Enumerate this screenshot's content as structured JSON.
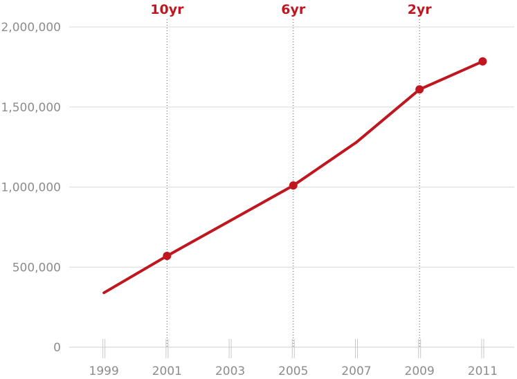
{
  "chart_data": {
    "type": "line",
    "title": "",
    "xlabel": "",
    "ylabel": "",
    "x": [
      1999,
      2001,
      2003,
      2005,
      2007,
      2009,
      2011
    ],
    "x_tick_labels": [
      "1999",
      "2001",
      "2003",
      "2005",
      "2007",
      "2009",
      "2011"
    ],
    "y_ticks": [
      0,
      500000,
      1000000,
      1500000,
      2000000
    ],
    "y_tick_labels": [
      "0",
      "500,000",
      "1,000,000",
      "1,500,000",
      "2,000,000"
    ],
    "xlim": [
      1997.9,
      2012
    ],
    "ylim": [
      0,
      2000000
    ],
    "grid": true,
    "legend": "none",
    "series": [
      {
        "values": [
          340000,
          570000,
          790000,
          1010000,
          1280000,
          1610000,
          1785000
        ],
        "markers": [
          false,
          true,
          false,
          true,
          false,
          true,
          true
        ],
        "color": "#c0161f"
      }
    ],
    "reference_lines": [
      {
        "x": 2001,
        "label": "10yr"
      },
      {
        "x": 2005,
        "label": "6yr"
      },
      {
        "x": 2009,
        "label": "2yr"
      }
    ],
    "colors": {
      "series": "#c0161f",
      "reference_label": "#c0161f",
      "grid": "#d9d9d9",
      "tick_text": "#8c8c8c"
    }
  }
}
